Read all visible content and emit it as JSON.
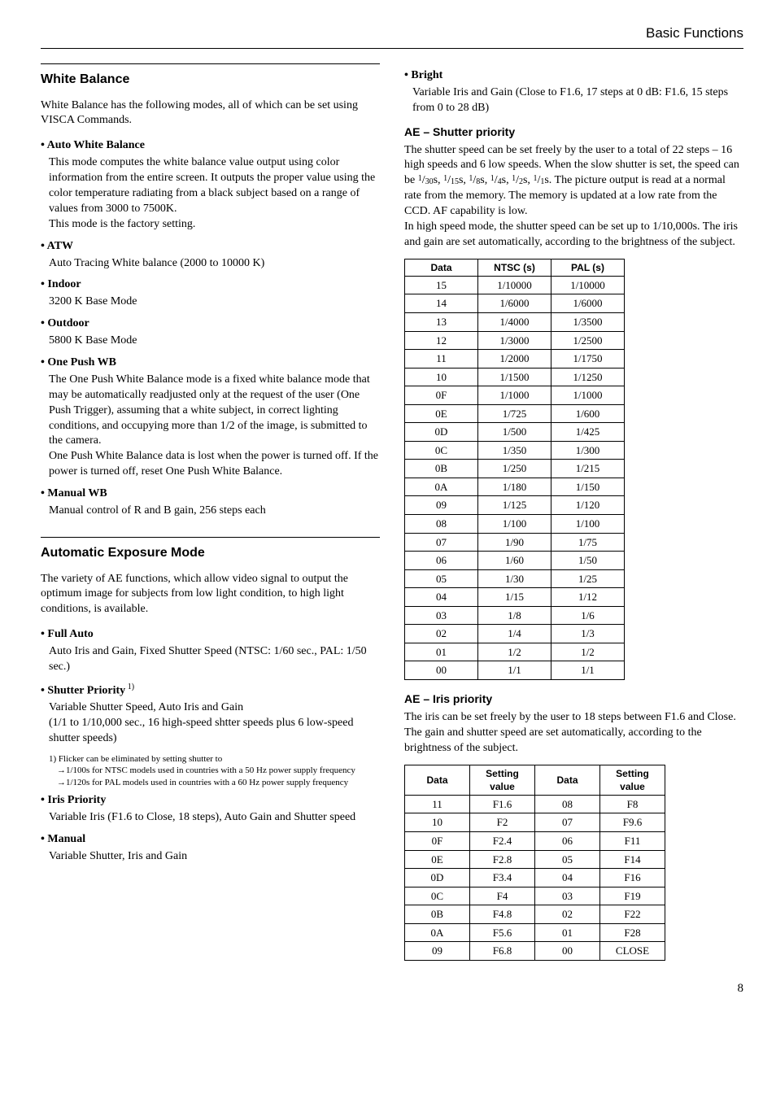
{
  "header": {
    "section": "Basic Functions",
    "page": "8"
  },
  "left": {
    "wb": {
      "title": "White Balance",
      "intro": "White Balance has the following modes, all of which can be set using VISCA Commands.",
      "items": [
        {
          "label": "• Auto White Balance",
          "desc": "This mode computes the white balance value output using color information from the entire screen. It outputs the proper value using the color temperature radiating from a black subject based on a range of values from 3000 to 7500K.\nThis mode is the factory setting."
        },
        {
          "label": "• ATW",
          "desc": "Auto Tracing White balance (2000 to 10000 K)"
        },
        {
          "label": "• Indoor",
          "desc": "3200 K Base Mode"
        },
        {
          "label": "• Outdoor",
          "desc": "5800 K Base Mode"
        },
        {
          "label": "• One Push WB",
          "desc": "The One Push White Balance mode is a fixed white balance mode that may be automatically readjusted only at the request of the user (One Push Trigger), assuming that a white subject, in correct lighting conditions, and occupying more than 1/2 of the image, is submitted to the camera.\nOne Push White Balance data is lost when the power is turned off. If the power is turned off, reset One Push White Balance."
        },
        {
          "label": "• Manual WB",
          "desc": "Manual control of R and B gain, 256 steps each"
        }
      ]
    },
    "ae": {
      "title": "Automatic Exposure Mode",
      "intro": "The variety of AE functions, which allow video signal to output the optimum image for subjects from low light condition, to high light conditions, is available.",
      "items": [
        {
          "label": "• Full Auto",
          "desc": "Auto Iris and Gain, Fixed Shutter Speed (NTSC: 1/60 sec., PAL: 1/50 sec.)"
        },
        {
          "label": "• Shutter Priority",
          "sup": " 1)",
          "desc": "Variable Shutter Speed, Auto Iris and Gain\n(1/1 to 1/10,000 sec., 16 high-speed shtter speeds plus 6 low-speed shutter speeds)"
        },
        {
          "label_footnote": "1) Flicker can be eliminated by setting shutter to",
          "sub": [
            "1/100s for NTSC models used in countries with a 50 Hz power supply frequency",
            "1/120s for PAL models used in countries with a 60 Hz power supply frequency"
          ]
        },
        {
          "label": "• Iris Priority",
          "desc": "Variable Iris (F1.6 to Close, 18 steps), Auto Gain and Shutter speed"
        },
        {
          "label": "• Manual",
          "desc": "Variable Shutter, Iris and Gain"
        }
      ]
    }
  },
  "right": {
    "bright": {
      "label": "• Bright",
      "desc": "Variable Iris and Gain (Close to F1.6, 17 steps at 0 dB: F1.6, 15 steps from 0 to 28 dB)"
    },
    "shutter": {
      "title": "AE – Shutter priority",
      "para_a": "The shutter speed can be set freely by the user to a total of 22 steps – 16 high speeds and 6 low speeds. When the slow shutter is set, the speed can be ",
      "para_b": "s. The picture output is read at a normal rate from the memory. The memory is updated at a low rate from the CCD. AF capability is low.\nIn high speed mode, the shutter speed can be set up to 1/10,000s. The iris and gain are set automatically, according to the brightness of the subject.",
      "fracs": [
        "1/30",
        "1/15",
        "1/8",
        "1/4",
        "1/2",
        "1/1"
      ],
      "table": {
        "headers": [
          "Data",
          "NTSC (s)",
          "PAL (s)"
        ],
        "rows": [
          [
            "15",
            "1/10000",
            "1/10000"
          ],
          [
            "14",
            "1/6000",
            "1/6000"
          ],
          [
            "13",
            "1/4000",
            "1/3500"
          ],
          [
            "12",
            "1/3000",
            "1/2500"
          ],
          [
            "11",
            "1/2000",
            "1/1750"
          ],
          [
            "10",
            "1/1500",
            "1/1250"
          ],
          [
            "0F",
            "1/1000",
            "1/1000"
          ],
          [
            "0E",
            "1/725",
            "1/600"
          ],
          [
            "0D",
            "1/500",
            "1/425"
          ],
          [
            "0C",
            "1/350",
            "1/300"
          ],
          [
            "0B",
            "1/250",
            "1/215"
          ],
          [
            "0A",
            "1/180",
            "1/150"
          ],
          [
            "09",
            "1/125",
            "1/120"
          ],
          [
            "08",
            "1/100",
            "1/100"
          ],
          [
            "07",
            "1/90",
            "1/75"
          ],
          [
            "06",
            "1/60",
            "1/50"
          ],
          [
            "05",
            "1/30",
            "1/25"
          ],
          [
            "04",
            "1/15",
            "1/12"
          ],
          [
            "03",
            "1/8",
            "1/6"
          ],
          [
            "02",
            "1/4",
            "1/3"
          ],
          [
            "01",
            "1/2",
            "1/2"
          ],
          [
            "00",
            "1/1",
            "1/1"
          ]
        ]
      }
    },
    "iris": {
      "title": "AE – Iris priority",
      "para": "The iris can be set freely by the user to 18 steps between F1.6 and Close.\nThe gain and shutter speed are set automatically, according to the brightness of the subject.",
      "table": {
        "headers": [
          "Data",
          "Setting value",
          "Data",
          "Setting value"
        ],
        "rows": [
          [
            "11",
            "F1.6",
            "08",
            "F8"
          ],
          [
            "10",
            "F2",
            "07",
            "F9.6"
          ],
          [
            "0F",
            "F2.4",
            "06",
            "F11"
          ],
          [
            "0E",
            "F2.8",
            "05",
            "F14"
          ],
          [
            "0D",
            "F3.4",
            "04",
            "F16"
          ],
          [
            "0C",
            "F4",
            "03",
            "F19"
          ],
          [
            "0B",
            "F4.8",
            "02",
            "F22"
          ],
          [
            "0A",
            "F5.6",
            "01",
            "F28"
          ],
          [
            "09",
            "F6.8",
            "00",
            "CLOSE"
          ]
        ]
      }
    }
  }
}
